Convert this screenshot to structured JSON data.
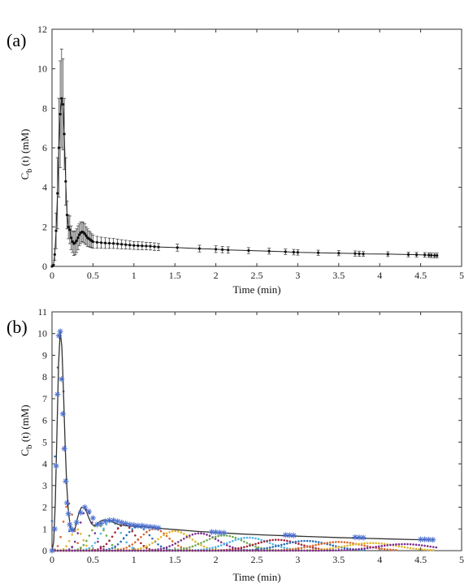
{
  "chart_data": [
    {
      "panel_label": "(a)",
      "type": "line",
      "xlabel": "Time (min)",
      "ylabel_main": "C",
      "ylabel_sub": "b",
      "ylabel_rest": " (t) (mM)",
      "xlim": [
        0,
        5
      ],
      "ylim": [
        0,
        12
      ],
      "xticks": [
        0,
        0.5,
        1,
        1.5,
        2,
        2.5,
        3,
        3.5,
        4,
        4.5,
        5
      ],
      "yticks": [
        0,
        2,
        4,
        6,
        8,
        10,
        12
      ],
      "grid": false,
      "error_bars": true,
      "series": [
        {
          "x": [
            0.0,
            0.017,
            0.033,
            0.05,
            0.067,
            0.083,
            0.1,
            0.117,
            0.133,
            0.15,
            0.167,
            0.183,
            0.2,
            0.217,
            0.233,
            0.25,
            0.267,
            0.283,
            0.3,
            0.317,
            0.333,
            0.35,
            0.367,
            0.383,
            0.4,
            0.417,
            0.433,
            0.45,
            0.467,
            0.483,
            0.5,
            0.55,
            0.6,
            0.65,
            0.7,
            0.75,
            0.8,
            0.85,
            0.9,
            0.95,
            1.0,
            1.05,
            1.1,
            1.15,
            1.2,
            1.25,
            1.3,
            1.53,
            1.8,
            2.0,
            2.08,
            2.15,
            2.4,
            2.65,
            2.85,
            2.95,
            3.0,
            3.25,
            3.5,
            3.7,
            3.75,
            3.8,
            4.1,
            4.35,
            4.45,
            4.55,
            4.6,
            4.63,
            4.67,
            4.7
          ],
          "y": [
            0.0,
            0.05,
            0.6,
            1.8,
            3.7,
            6.0,
            7.7,
            8.5,
            8.2,
            6.7,
            4.3,
            2.6,
            2.0,
            1.85,
            1.45,
            1.25,
            1.15,
            1.2,
            1.3,
            1.45,
            1.6,
            1.7,
            1.75,
            1.72,
            1.65,
            1.55,
            1.45,
            1.4,
            1.35,
            1.3,
            1.25,
            1.22,
            1.2,
            1.18,
            1.17,
            1.16,
            1.14,
            1.12,
            1.1,
            1.08,
            1.06,
            1.05,
            1.04,
            1.03,
            1.02,
            1.0,
            0.98,
            0.95,
            0.9,
            0.87,
            0.85,
            0.83,
            0.8,
            0.77,
            0.74,
            0.72,
            0.71,
            0.69,
            0.67,
            0.65,
            0.64,
            0.63,
            0.62,
            0.6,
            0.59,
            0.58,
            0.57,
            0.56,
            0.55,
            0.55
          ],
          "err": [
            0.0,
            0.05,
            0.3,
            0.9,
            1.8,
            2.5,
            2.7,
            2.5,
            2.3,
            1.8,
            1.2,
            0.7,
            0.6,
            0.7,
            0.6,
            0.55,
            0.6,
            0.6,
            0.6,
            0.6,
            0.55,
            0.55,
            0.5,
            0.5,
            0.5,
            0.45,
            0.45,
            0.4,
            0.38,
            0.35,
            0.33,
            0.3,
            0.28,
            0.27,
            0.26,
            0.25,
            0.24,
            0.23,
            0.22,
            0.21,
            0.2,
            0.2,
            0.2,
            0.19,
            0.19,
            0.19,
            0.18,
            0.18,
            0.17,
            0.17,
            0.16,
            0.16,
            0.15,
            0.15,
            0.14,
            0.14,
            0.14,
            0.13,
            0.13,
            0.13,
            0.13,
            0.12,
            0.12,
            0.12,
            0.12,
            0.12,
            0.12,
            0.12,
            0.12,
            0.12
          ]
        }
      ]
    },
    {
      "panel_label": "(b)",
      "type": "line",
      "xlabel": "Time (min)",
      "ylabel_main": "C",
      "ylabel_sub": "b",
      "ylabel_rest": " (t) (mM)",
      "xlim": [
        0,
        5
      ],
      "ylim": [
        0,
        11
      ],
      "xticks": [
        0,
        0.5,
        1,
        1.5,
        2,
        2.5,
        3,
        3.5,
        4,
        4.5,
        5
      ],
      "yticks": [
        0,
        1,
        2,
        3,
        4,
        5,
        6,
        7,
        8,
        9,
        10,
        11
      ],
      "grid": false,
      "fit_line": {
        "x": [
          0.0,
          0.02,
          0.04,
          0.06,
          0.08,
          0.1,
          0.12,
          0.14,
          0.16,
          0.18,
          0.2,
          0.22,
          0.24,
          0.26,
          0.28,
          0.3,
          0.33,
          0.36,
          0.39,
          0.42,
          0.45,
          0.48,
          0.51,
          0.54,
          0.57,
          0.6,
          0.65,
          0.7,
          0.75,
          0.8,
          0.85,
          0.9,
          0.95,
          1.0,
          1.1,
          1.2,
          1.3,
          1.5,
          1.8,
          2.0,
          2.3,
          2.6,
          2.9,
          3.2,
          3.5,
          3.8,
          4.1,
          4.4,
          4.65
        ],
        "y": [
          0.0,
          0.4,
          2.2,
          5.4,
          8.6,
          10.1,
          9.4,
          7.3,
          4.9,
          3.0,
          1.8,
          1.2,
          0.95,
          0.9,
          1.0,
          1.35,
          1.75,
          2.0,
          2.0,
          1.8,
          1.5,
          1.25,
          1.15,
          1.2,
          1.3,
          1.38,
          1.42,
          1.38,
          1.3,
          1.22,
          1.18,
          1.15,
          1.13,
          1.12,
          1.1,
          1.07,
          1.03,
          0.97,
          0.88,
          0.84,
          0.77,
          0.72,
          0.68,
          0.64,
          0.6,
          0.57,
          0.54,
          0.51,
          0.5
        ]
      },
      "samples": {
        "x": [
          0.0,
          0.033,
          0.05,
          0.067,
          0.083,
          0.1,
          0.117,
          0.133,
          0.15,
          0.167,
          0.183,
          0.2,
          0.217,
          0.233,
          0.25,
          0.3,
          0.35,
          0.4,
          0.45,
          0.5,
          0.55,
          0.6,
          0.65,
          0.7,
          0.75,
          0.8,
          0.85,
          0.9,
          0.95,
          1.0,
          1.05,
          1.1,
          1.15,
          1.2,
          1.25,
          1.3,
          1.95,
          2.0,
          2.05,
          2.1,
          2.85,
          2.9,
          2.95,
          3.7,
          3.75,
          3.8,
          4.5,
          4.55,
          4.6,
          4.65
        ],
        "y": [
          0.0,
          1.0,
          3.9,
          7.2,
          9.9,
          10.1,
          7.9,
          6.3,
          4.7,
          3.2,
          2.2,
          1.7,
          1.2,
          1.0,
          0.95,
          1.3,
          1.75,
          2.0,
          1.8,
          1.5,
          1.2,
          1.25,
          1.35,
          1.4,
          1.4,
          1.35,
          1.3,
          1.25,
          1.2,
          1.18,
          1.15,
          1.15,
          1.12,
          1.1,
          1.08,
          1.05,
          0.86,
          0.85,
          0.83,
          0.82,
          0.72,
          0.71,
          0.7,
          0.62,
          0.61,
          0.6,
          0.52,
          0.52,
          0.51,
          0.5
        ]
      },
      "components": [
        {
          "color": "#2e6fb5",
          "center": 0.1,
          "width": 0.05,
          "height": 10.1
        },
        {
          "color": "#d9672b",
          "center": 0.2,
          "width": 0.06,
          "height": 2.2
        },
        {
          "color": "#e0b52a",
          "center": 0.3,
          "width": 0.07,
          "height": 1.0
        },
        {
          "color": "#7b2f8f",
          "center": 0.42,
          "width": 0.08,
          "height": 1.9
        },
        {
          "color": "#6aa84f",
          "center": 0.56,
          "width": 0.1,
          "height": 1.2
        },
        {
          "color": "#4db3e6",
          "center": 0.72,
          "width": 0.12,
          "height": 1.35
        },
        {
          "color": "#a0243a",
          "center": 0.88,
          "width": 0.13,
          "height": 1.2
        },
        {
          "color": "#2e6fb5",
          "center": 1.05,
          "width": 0.15,
          "height": 1.1
        },
        {
          "color": "#d9672b",
          "center": 1.25,
          "width": 0.17,
          "height": 1.0
        },
        {
          "color": "#e0b52a",
          "center": 1.5,
          "width": 0.2,
          "height": 0.9
        },
        {
          "color": "#7b2f8f",
          "center": 1.8,
          "width": 0.22,
          "height": 0.8
        },
        {
          "color": "#6aa84f",
          "center": 2.1,
          "width": 0.24,
          "height": 0.7
        },
        {
          "color": "#4db3e6",
          "center": 2.4,
          "width": 0.25,
          "height": 0.6
        },
        {
          "color": "#a0243a",
          "center": 2.75,
          "width": 0.27,
          "height": 0.5
        },
        {
          "color": "#2e6fb5",
          "center": 3.1,
          "width": 0.29,
          "height": 0.45
        },
        {
          "color": "#d9672b",
          "center": 3.5,
          "width": 0.3,
          "height": 0.4
        },
        {
          "color": "#e0b52a",
          "center": 3.9,
          "width": 0.32,
          "height": 0.35
        },
        {
          "color": "#7b2f8f",
          "center": 4.3,
          "width": 0.33,
          "height": 0.3
        }
      ]
    }
  ]
}
